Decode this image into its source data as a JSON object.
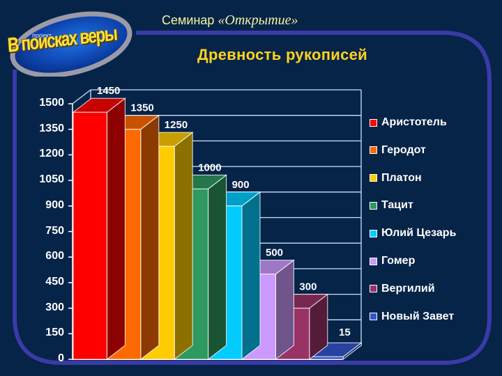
{
  "header": {
    "logo_small": "проект",
    "logo_main": "В поисках веры",
    "seminar_prefix": "Семинар ",
    "seminar_name": "«Открытие»",
    "title": "Древность рукописей"
  },
  "colors": {
    "background": "#062448",
    "frame": "#3a3aa8",
    "title": "#ffd21f",
    "seminar": "#f4f4a0"
  },
  "chart_data": {
    "type": "bar",
    "title": "Древность рукописей",
    "xlabel": "",
    "ylabel": "",
    "ylim": [
      0,
      1500
    ],
    "yticks": [
      0,
      150,
      300,
      450,
      600,
      750,
      900,
      1050,
      1200,
      1350,
      1500
    ],
    "grid": true,
    "legend_position": "right",
    "three_d": true,
    "categories": [
      "Аристотель",
      "Геродот",
      "Платон",
      "Тацит",
      "Юлий Цезарь",
      "Гомер",
      "Вергилий",
      "Новый Завет"
    ],
    "values": [
      1450,
      1350,
      1250,
      1000,
      900,
      500,
      300,
      15
    ],
    "data_labels": [
      "1450",
      "1350",
      "1250",
      "1000",
      "900",
      "500",
      "300",
      "15"
    ],
    "series_colors": [
      "#ff0000",
      "#ff6a00",
      "#ffcc00",
      "#2e9960",
      "#00ccff",
      "#cc99ff",
      "#993366",
      "#3355cc"
    ]
  },
  "legend": {
    "items": [
      {
        "label": "Аристотель",
        "color": "#ff0000"
      },
      {
        "label": "Геродот",
        "color": "#ff6a00"
      },
      {
        "label": "Платон",
        "color": "#ffcc00"
      },
      {
        "label": "Тацит",
        "color": "#2e9960"
      },
      {
        "label": "Юлий Цезарь",
        "color": "#00ccff"
      },
      {
        "label": "Гомер",
        "color": "#cc99ff"
      },
      {
        "label": "Вергилий",
        "color": "#993366"
      },
      {
        "label": "Новый Завет",
        "color": "#3355cc"
      }
    ]
  }
}
